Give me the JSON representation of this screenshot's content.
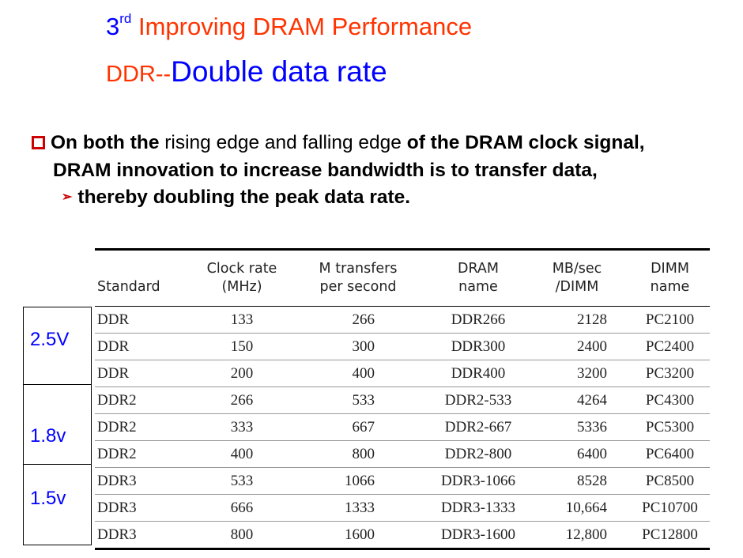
{
  "title": {
    "ordinal_number": "3",
    "ordinal_suffix": "rd",
    "heading": " Improving DRAM Performance",
    "abbr": "DDR--",
    "full_name": "Double data rate"
  },
  "bullet": {
    "bold1": "On both the",
    "normal1": " rising edge and falling edge ",
    "bold2": "of the DRAM clock signal,",
    "line2": "DRAM innovation to increase bandwidth is to transfer data,",
    "sub": "thereby doubling the peak data rate."
  },
  "voltages": [
    "2.5V",
    "1.8v",
    "1.5v"
  ],
  "table": {
    "headers": [
      [
        "",
        "Standard"
      ],
      [
        "Clock rate",
        "(MHz)"
      ],
      [
        "M transfers",
        "per second"
      ],
      [
        "DRAM",
        "name"
      ],
      [
        "MB/sec",
        "/DIMM"
      ],
      [
        "DIMM",
        "name"
      ]
    ],
    "rows": [
      [
        "DDR",
        "133",
        "266",
        "DDR266",
        "2128",
        "PC2100"
      ],
      [
        "DDR",
        "150",
        "300",
        "DDR300",
        "2400",
        "PC2400"
      ],
      [
        "DDR",
        "200",
        "400",
        "DDR400",
        "3200",
        "PC3200"
      ],
      [
        "DDR2",
        "266",
        "533",
        "DDR2-533",
        "4264",
        "PC4300"
      ],
      [
        "DDR2",
        "333",
        "667",
        "DDR2-667",
        "5336",
        "PC5300"
      ],
      [
        "DDR2",
        "400",
        "800",
        "DDR2-800",
        "6400",
        "PC6400"
      ],
      [
        "DDR3",
        "533",
        "1066",
        "DDR3-1066",
        "8528",
        "PC8500"
      ],
      [
        "DDR3",
        "666",
        "1333",
        "DDR3-1333",
        "10,664",
        "PC10700"
      ],
      [
        "DDR3",
        "800",
        "1600",
        "DDR3-1600",
        "12,800",
        "PC12800"
      ]
    ]
  },
  "colors": {
    "title_red": "#ff3300",
    "title_blue": "#0000ff",
    "bullet_red": "#cc0000"
  }
}
